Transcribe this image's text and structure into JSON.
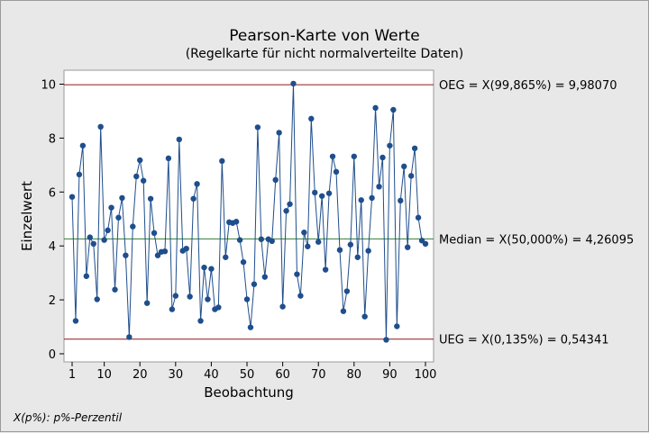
{
  "chart_data": {
    "type": "line",
    "title": "Pearson-Karte von Werte",
    "subtitle": "(Regelkarte für nicht normalverteilte Daten)",
    "xlabel": "Beobachtung",
    "ylabel": "Einzelwert",
    "footnote": "X(p%): p%-Perzentil",
    "xlim": [
      1,
      100
    ],
    "ylim": [
      0,
      10.5
    ],
    "xticks": [
      1,
      10,
      20,
      30,
      40,
      50,
      60,
      70,
      80,
      90,
      100
    ],
    "yticks": [
      0,
      2,
      4,
      6,
      8,
      10
    ],
    "grid": false,
    "series_color": "#1f4e8c",
    "reference_lines": [
      {
        "name": "OEG",
        "value": 9.9807,
        "label": "OEG = X(99,865%) = 9,98070",
        "color": "#8b1a1a"
      },
      {
        "name": "Median",
        "value": 4.26095,
        "label": "Median = X(50,000%) = 4,26095",
        "color": "#2e7d32"
      },
      {
        "name": "UEG",
        "value": 0.54341,
        "label": "UEG = X(0,135%) = 0,54341",
        "color": "#8b1a1a"
      }
    ],
    "values": [
      5.82,
      1.22,
      6.65,
      7.72,
      2.88,
      4.32,
      4.08,
      2.02,
      8.42,
      4.22,
      4.58,
      5.42,
      2.38,
      5.05,
      5.78,
      3.65,
      0.62,
      4.72,
      6.58,
      7.18,
      6.42,
      1.88,
      5.75,
      4.48,
      3.65,
      3.78,
      3.8,
      7.25,
      1.65,
      2.15,
      7.95,
      3.82,
      3.9,
      2.12,
      5.75,
      6.3,
      1.22,
      3.2,
      2.02,
      3.15,
      1.65,
      1.72,
      7.15,
      3.58,
      4.88,
      4.85,
      4.9,
      4.22,
      3.4,
      2.02,
      0.98,
      2.58,
      8.4,
      4.25,
      2.85,
      4.25,
      4.18,
      6.45,
      8.2,
      1.75,
      5.3,
      5.55,
      10.02,
      2.95,
      2.15,
      4.5,
      3.98,
      8.72,
      5.98,
      4.15,
      5.85,
      3.12,
      5.95,
      7.32,
      6.75,
      3.85,
      1.58,
      2.32,
      4.05,
      7.32,
      3.58,
      5.7,
      1.38,
      3.82,
      5.78,
      9.12,
      6.2,
      7.28,
      0.52,
      7.72,
      9.05,
      1.02,
      5.68,
      6.95,
      3.95,
      6.6,
      7.62,
      5.05,
      4.2,
      4.08
    ]
  }
}
